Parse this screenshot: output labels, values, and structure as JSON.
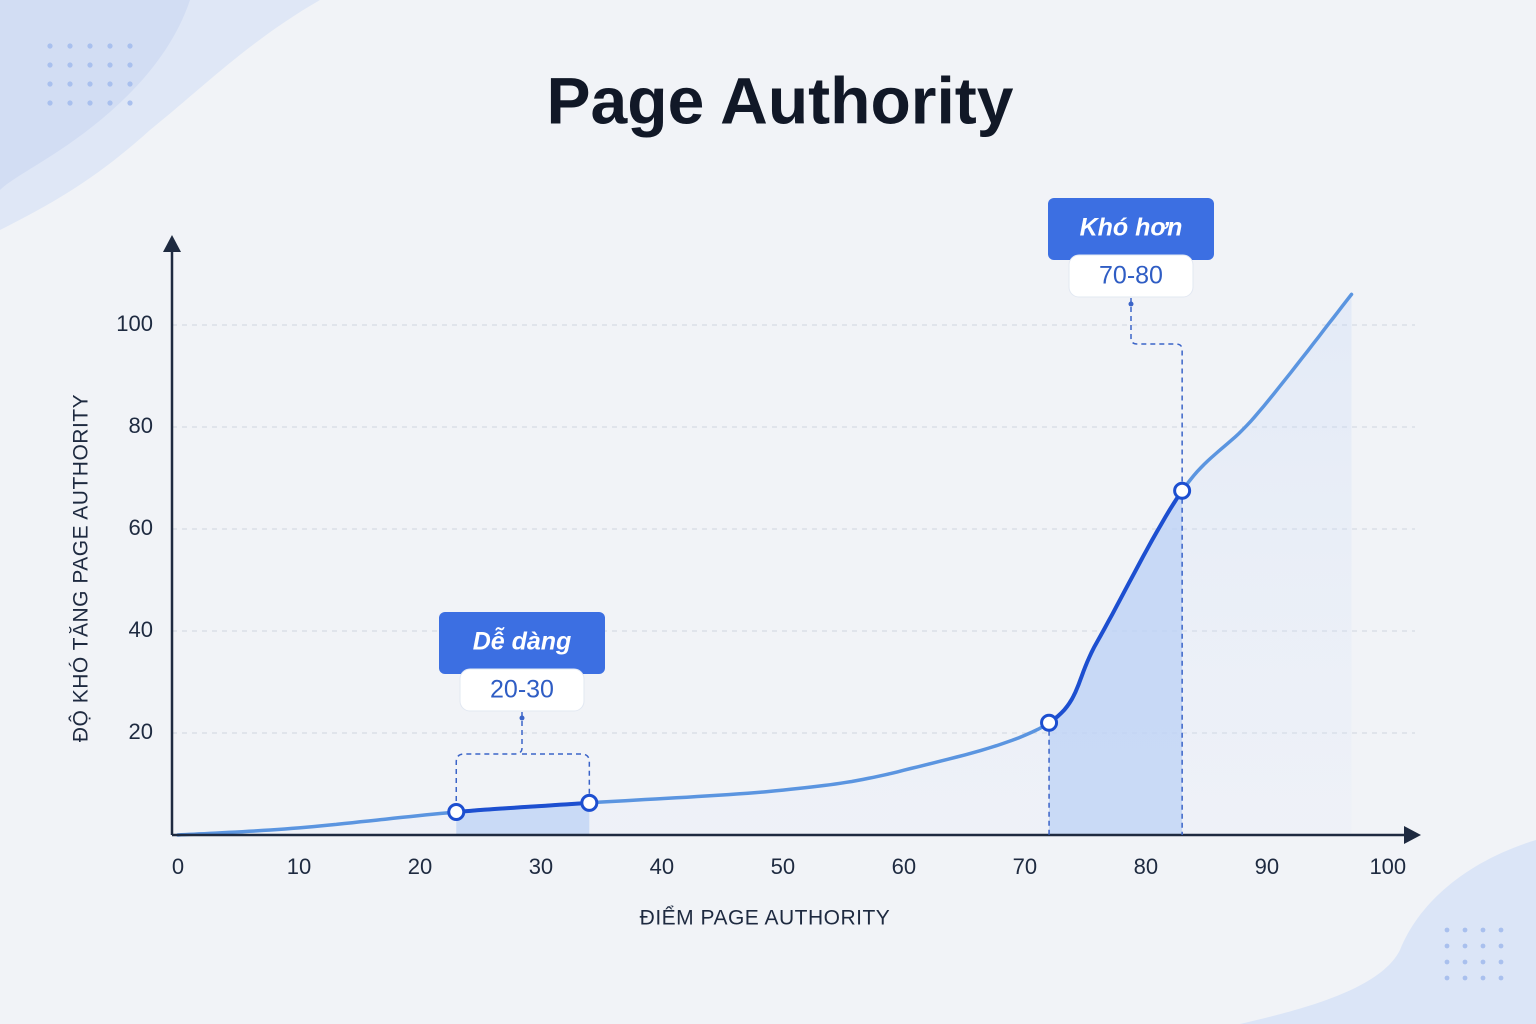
{
  "chart_data": {
    "type": "line",
    "title": "Page Authority",
    "x_label": "ĐIỂM PAGE AUTHORITY",
    "y_label": "ĐỘ KHÓ TĂNG PAGE AUTHORITY",
    "x": [
      0,
      10,
      23,
      34,
      50,
      60,
      72,
      76,
      83,
      89,
      97
    ],
    "series": [
      {
        "color": "#5b95e0",
        "values": [
          0,
          1.4,
          4.5,
          6.3,
          8.8,
          12.7,
          22,
          38,
          67.5,
          82,
          106
        ]
      }
    ],
    "xlim": [
      0,
      102
    ],
    "ylim": [
      0,
      120
    ],
    "xticks": [
      0,
      10,
      20,
      30,
      40,
      50,
      60,
      70,
      80,
      90,
      100
    ],
    "yticks": [
      20,
      40,
      60,
      80,
      100
    ],
    "grid": true,
    "highlights": [
      {
        "label": "Dễ dàng",
        "range": "20-30",
        "color": "#1d4fd0",
        "x": [
          23,
          34
        ],
        "y": [
          4.5,
          6.3
        ]
      },
      {
        "label": "Khó hơn",
        "range": "70-80",
        "color": "#1d4fd0",
        "x": [
          72,
          83
        ],
        "y": [
          22,
          67.5
        ]
      }
    ]
  }
}
